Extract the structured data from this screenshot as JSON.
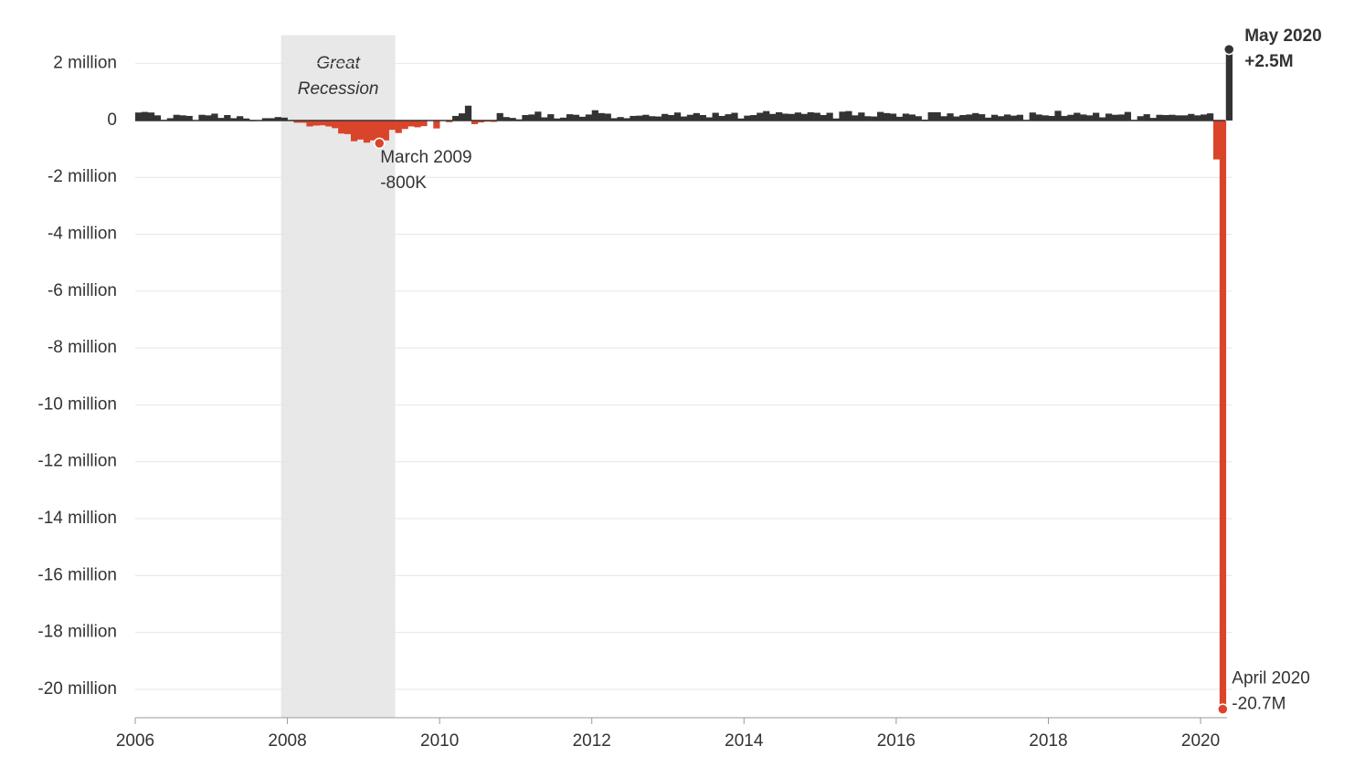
{
  "chart_data": {
    "type": "bar",
    "x": [
      2006,
      2006.083,
      2006.167,
      2006.25,
      2006.333,
      2006.417,
      2006.5,
      2006.583,
      2006.667,
      2006.75,
      2006.833,
      2006.917,
      2007,
      2007.083,
      2007.167,
      2007.25,
      2007.333,
      2007.417,
      2007.5,
      2007.583,
      2007.667,
      2007.75,
      2007.833,
      2007.917,
      2008,
      2008.083,
      2008.167,
      2008.25,
      2008.333,
      2008.417,
      2008.5,
      2008.583,
      2008.667,
      2008.75,
      2008.833,
      2008.917,
      2009,
      2009.083,
      2009.167,
      2009.25,
      2009.333,
      2009.417,
      2009.5,
      2009.583,
      2009.667,
      2009.75,
      2009.833,
      2009.917,
      2010,
      2010.083,
      2010.167,
      2010.25,
      2010.333,
      2010.417,
      2010.5,
      2010.583,
      2010.667,
      2010.75,
      2010.833,
      2010.917,
      2011,
      2011.083,
      2011.167,
      2011.25,
      2011.333,
      2011.417,
      2011.5,
      2011.583,
      2011.667,
      2011.75,
      2011.833,
      2011.917,
      2012,
      2012.083,
      2012.167,
      2012.25,
      2012.333,
      2012.417,
      2012.5,
      2012.583,
      2012.667,
      2012.75,
      2012.833,
      2012.917,
      2013,
      2013.083,
      2013.167,
      2013.25,
      2013.333,
      2013.417,
      2013.5,
      2013.583,
      2013.667,
      2013.75,
      2013.833,
      2013.917,
      2014,
      2014.083,
      2014.167,
      2014.25,
      2014.333,
      2014.417,
      2014.5,
      2014.583,
      2014.667,
      2014.75,
      2014.833,
      2014.917,
      2015,
      2015.083,
      2015.167,
      2015.25,
      2015.333,
      2015.417,
      2015.5,
      2015.583,
      2015.667,
      2015.75,
      2015.833,
      2015.917,
      2016,
      2016.083,
      2016.167,
      2016.25,
      2016.333,
      2016.417,
      2016.5,
      2016.583,
      2016.667,
      2016.75,
      2016.833,
      2016.917,
      2017,
      2017.083,
      2017.167,
      2017.25,
      2017.333,
      2017.417,
      2017.5,
      2017.583,
      2017.667,
      2017.75,
      2017.833,
      2017.917,
      2018,
      2018.083,
      2018.167,
      2018.25,
      2018.333,
      2018.417,
      2018.5,
      2018.583,
      2018.667,
      2018.75,
      2018.833,
      2018.917,
      2019,
      2019.083,
      2019.167,
      2019.25,
      2019.333,
      2019.417,
      2019.5,
      2019.583,
      2019.667,
      2019.75,
      2019.833,
      2019.917,
      2020,
      2020.083,
      2020.167,
      2020.25,
      2020.333
    ],
    "values": [
      0.28,
      0.3,
      0.28,
      0.18,
      0.02,
      0.08,
      0.2,
      0.18,
      0.16,
      0.01,
      0.2,
      0.18,
      0.24,
      0.09,
      0.19,
      0.08,
      0.15,
      0.07,
      -0.03,
      -0.02,
      0.08,
      0.08,
      0.12,
      0.1,
      0.01,
      -0.08,
      -0.08,
      -0.21,
      -0.18,
      -0.17,
      -0.21,
      -0.27,
      -0.46,
      -0.48,
      -0.73,
      -0.67,
      -0.78,
      -0.7,
      -0.8,
      -0.7,
      -0.33,
      -0.44,
      -0.3,
      -0.21,
      -0.24,
      -0.2,
      -0.01,
      -0.28,
      -0.01,
      -0.06,
      0.16,
      0.25,
      0.52,
      -0.13,
      -0.07,
      -0.04,
      -0.05,
      0.26,
      0.12,
      0.09,
      0.04,
      0.19,
      0.21,
      0.31,
      0.11,
      0.22,
      0.07,
      0.1,
      0.22,
      0.2,
      0.13,
      0.21,
      0.36,
      0.26,
      0.24,
      0.08,
      0.12,
      0.08,
      0.16,
      0.17,
      0.2,
      0.15,
      0.14,
      0.23,
      0.19,
      0.28,
      0.14,
      0.2,
      0.26,
      0.19,
      0.11,
      0.27,
      0.16,
      0.22,
      0.27,
      0.07,
      0.17,
      0.19,
      0.27,
      0.33,
      0.23,
      0.29,
      0.24,
      0.23,
      0.28,
      0.23,
      0.29,
      0.27,
      0.19,
      0.27,
      0.07,
      0.31,
      0.33,
      0.18,
      0.28,
      0.15,
      0.14,
      0.3,
      0.26,
      0.24,
      0.13,
      0.24,
      0.21,
      0.15,
      0.03,
      0.29,
      0.29,
      0.15,
      0.25,
      0.14,
      0.19,
      0.21,
      0.26,
      0.22,
      0.1,
      0.2,
      0.15,
      0.21,
      0.17,
      0.2,
      0.02,
      0.28,
      0.21,
      0.18,
      0.16,
      0.34,
      0.16,
      0.2,
      0.27,
      0.21,
      0.18,
      0.27,
      0.11,
      0.24,
      0.2,
      0.21,
      0.3,
      0.02,
      0.15,
      0.22,
      0.09,
      0.2,
      0.19,
      0.2,
      0.18,
      0.18,
      0.23,
      0.18,
      0.21,
      0.25,
      -1.37,
      -20.7,
      2.5
    ],
    "color": "#333333",
    "negative_color": "#d9442b",
    "xlim": [
      2006,
      2020.42
    ],
    "xticks": [
      2006,
      2008,
      2010,
      2012,
      2014,
      2016,
      2018,
      2020
    ],
    "ylim": [
      -21,
      3
    ],
    "yticks": [
      {
        "value": 2,
        "label": "2 million"
      },
      0,
      {
        "value": -2,
        "label": "-2 million"
      },
      {
        "value": -4,
        "label": "-4 million"
      },
      {
        "value": -6,
        "label": "-6 million"
      },
      {
        "value": -8,
        "label": "-8 million"
      },
      {
        "value": -10,
        "label": "-10 million"
      },
      {
        "value": -12,
        "label": "-12 million"
      },
      {
        "value": -14,
        "label": "-14 million"
      },
      {
        "value": -16,
        "label": "-16 million"
      },
      {
        "value": -18,
        "label": "-18 million"
      },
      {
        "value": -20,
        "label": "-20 million"
      }
    ],
    "grid": true,
    "shaded_region": {
      "label": [
        "Great",
        "Recession"
      ],
      "start": 2007.917,
      "end": 2009.417
    },
    "annotations": [
      {
        "label": "March 2009",
        "value_label": "-800K",
        "x": 2009.167,
        "value": -0.8,
        "bold": false
      },
      {
        "label": "May 2020",
        "value_label": "+2.5M",
        "x": 2020.333,
        "value": 2.5,
        "bold": true
      },
      {
        "label": "April 2020",
        "value_label": "-20.7M",
        "x": 2020.25,
        "value": -20.7,
        "bold": false
      }
    ]
  }
}
